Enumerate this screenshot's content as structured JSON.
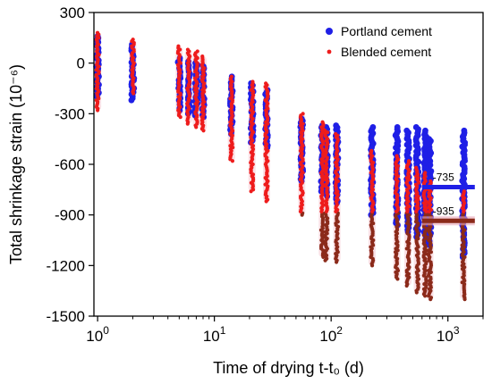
{
  "chart_data": {
    "type": "scatter",
    "xscale": "log",
    "xlim": [
      0.93,
      2000
    ],
    "ylim": [
      -1500,
      300
    ],
    "xlabel": "Time of drying t-t₀ (d)",
    "ylabel": "Total shrinkage strain (10⁻⁶)",
    "x_ticks": [
      1,
      10,
      100,
      1000
    ],
    "x_tick_labels": [
      [
        "10",
        "0"
      ],
      [
        "10",
        "1"
      ],
      [
        "10",
        "2"
      ],
      [
        "10",
        "3"
      ]
    ],
    "y_ticks": [
      300,
      0,
      -300,
      -600,
      -900,
      -1200,
      -1500
    ],
    "y_tick_labels": [
      "300",
      "0",
      "-300",
      "-600",
      "-900",
      "-1200",
      "-1500"
    ],
    "grid": false,
    "legend_position": "top-right",
    "series": [
      {
        "name": "Portland cement",
        "color": "#1f1fe6",
        "marker": "circle-large",
        "columns": [
          {
            "x": 1,
            "ymin": -200,
            "ymax": 160
          },
          {
            "x": 2,
            "ymin": -220,
            "ymax": 110
          },
          {
            "x": 5,
            "ymin": -280,
            "ymax": 30
          },
          {
            "x": 6,
            "ymin": -300,
            "ymax": 10
          },
          {
            "x": 7,
            "ymin": -310,
            "ymax": 0
          },
          {
            "x": 8,
            "ymin": -320,
            "ymax": -20
          },
          {
            "x": 14,
            "ymin": -420,
            "ymax": -80
          },
          {
            "x": 21,
            "ymin": -470,
            "ymax": -120
          },
          {
            "x": 28,
            "ymin": -500,
            "ymax": -160
          },
          {
            "x": 56,
            "ymin": -700,
            "ymax": -330
          },
          {
            "x": 84,
            "ymin": -760,
            "ymax": -370
          },
          {
            "x": 91,
            "ymin": -790,
            "ymax": -380
          },
          {
            "x": 112,
            "ymin": -830,
            "ymax": -370
          },
          {
            "x": 224,
            "ymin": -900,
            "ymax": -380
          },
          {
            "x": 365,
            "ymin": -960,
            "ymax": -380
          },
          {
            "x": 455,
            "ymin": -1000,
            "ymax": -400
          },
          {
            "x": 547,
            "ymin": -1030,
            "ymax": -380
          },
          {
            "x": 637,
            "ymin": -1050,
            "ymax": -400
          },
          {
            "x": 700,
            "ymin": -1080,
            "ymax": -450
          },
          {
            "x": 1360,
            "ymin": -1150,
            "ymax": -400
          }
        ],
        "mean_line": {
          "value": -735,
          "label": "-735",
          "x_range": [
            600,
            1700
          ],
          "color": "#1f1fe6"
        }
      },
      {
        "name": "Blended cement",
        "color": "#ee1c1c",
        "lower_color": "#8b2a1a",
        "marker": "circle-small",
        "columns": [
          {
            "x": 1,
            "ymin": -280,
            "ymax": 180
          },
          {
            "x": 2,
            "ymin": -180,
            "ymax": 140
          },
          {
            "x": 5,
            "ymin": -320,
            "ymax": 100
          },
          {
            "x": 6,
            "ymin": -360,
            "ymax": 80
          },
          {
            "x": 7,
            "ymin": -380,
            "ymax": 70
          },
          {
            "x": 8,
            "ymin": -400,
            "ymax": 40
          },
          {
            "x": 14,
            "ymin": -580,
            "ymax": -80
          },
          {
            "x": 21,
            "ymin": -760,
            "ymax": -110
          },
          {
            "x": 28,
            "ymin": -820,
            "ymax": -120
          },
          {
            "x": 56,
            "ymin": -900,
            "ymax": -300
          },
          {
            "x": 84,
            "ymin": -1150,
            "ymax": -350
          },
          {
            "x": 91,
            "ymin": -1170,
            "ymax": -400
          },
          {
            "x": 112,
            "ymin": -1180,
            "ymax": -420
          },
          {
            "x": 224,
            "ymin": -1200,
            "ymax": -520
          },
          {
            "x": 365,
            "ymin": -1280,
            "ymax": -550
          },
          {
            "x": 455,
            "ymin": -1320,
            "ymax": -580
          },
          {
            "x": 547,
            "ymin": -1360,
            "ymax": -620
          },
          {
            "x": 637,
            "ymin": -1380,
            "ymax": -650
          },
          {
            "x": 700,
            "ymin": -1400,
            "ymax": -700
          },
          {
            "x": 1360,
            "ymin": -1400,
            "ymax": -760
          }
        ],
        "mean_line": {
          "value": -935,
          "label": "-935",
          "x_range": [
            600,
            1700
          ],
          "color": "#8b2a1a"
        }
      }
    ]
  }
}
